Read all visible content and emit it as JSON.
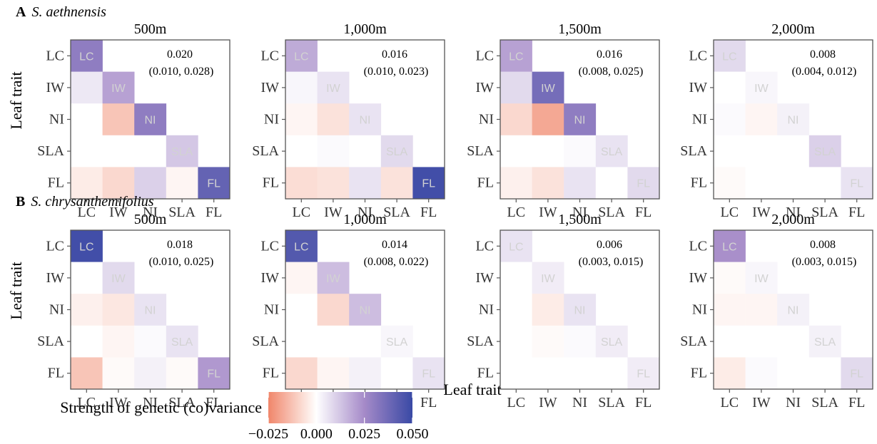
{
  "figure": {
    "shared_ylabel": "Leaf trait",
    "shared_xlabel": "Leaf trait",
    "colorbar": {
      "title": "Strength of genetic (co)variance",
      "min": -0.025,
      "max": 0.05,
      "ticks": [
        -0.025,
        0.0,
        0.025,
        0.05
      ],
      "tick_labels": [
        "−0.025",
        "0.000",
        "0.025",
        "0.050"
      ],
      "colors": {
        "negative": "#f0866a",
        "zero": "#ffffff",
        "mid": "#a58ac8",
        "positive": "#3949a5"
      }
    }
  },
  "chart_data": {
    "type": "heatmap",
    "traits": [
      "LC",
      "IW",
      "NI",
      "SLA",
      "FL"
    ],
    "rows": [
      {
        "letter": "A",
        "species": "S. aethnensis",
        "panels": [
          {
            "title": "500m",
            "estimate": "0.020",
            "ci": "(0.010, 0.028)",
            "matrix": [
              [
                0.03,
                null,
                null,
                null,
                null
              ],
              [
                0.005,
                0.02,
                null,
                null,
                null
              ],
              [
                0.0,
                -0.012,
                0.03,
                null,
                null
              ],
              [
                0.0,
                0.0,
                0.0,
                0.012,
                null
              ],
              [
                -0.004,
                -0.008,
                0.01,
                -0.002,
                0.04
              ]
            ]
          },
          {
            "title": "1,000m",
            "estimate": "0.016",
            "ci": "(0.010, 0.023)",
            "matrix": [
              [
                0.018,
                null,
                null,
                null,
                null
              ],
              [
                0.002,
                0.006,
                null,
                null,
                null
              ],
              [
                -0.002,
                -0.006,
                0.006,
                null,
                null
              ],
              [
                0.0,
                0.001,
                0.0,
                0.008,
                null
              ],
              [
                -0.007,
                -0.006,
                0.006,
                -0.006,
                0.048
              ]
            ]
          },
          {
            "title": "1,500m",
            "estimate": "0.016",
            "ci": "(0.008, 0.025)",
            "matrix": [
              [
                0.02,
                null,
                null,
                null,
                null
              ],
              [
                0.008,
                0.036,
                null,
                null,
                null
              ],
              [
                -0.008,
                -0.018,
                0.03,
                null,
                null
              ],
              [
                0.0,
                0.0,
                0.001,
                0.006,
                null
              ],
              [
                -0.003,
                -0.006,
                0.006,
                0.0,
                0.008
              ]
            ]
          },
          {
            "title": "2,000m",
            "estimate": "0.008",
            "ci": "(0.004, 0.012)",
            "matrix": [
              [
                0.008,
                null,
                null,
                null,
                null
              ],
              [
                0.0,
                0.002,
                null,
                null,
                null
              ],
              [
                0.001,
                -0.002,
                0.003,
                null,
                null
              ],
              [
                0.0,
                0.0,
                0.0,
                0.01,
                null
              ],
              [
                -0.001,
                0.0,
                0.0,
                0.0,
                0.006
              ]
            ]
          }
        ]
      },
      {
        "letter": "B",
        "species": "S. chrysanthemifolius",
        "panels": [
          {
            "title": "500m",
            "estimate": "0.018",
            "ci": "(0.010, 0.025)",
            "matrix": [
              [
                0.048,
                null,
                null,
                null,
                null
              ],
              [
                0.0,
                0.008,
                null,
                null,
                null
              ],
              [
                -0.003,
                -0.005,
                0.006,
                null,
                null
              ],
              [
                0.0,
                -0.002,
                0.001,
                0.006,
                null
              ],
              [
                -0.012,
                -0.001,
                0.003,
                -0.001,
                0.022
              ]
            ]
          },
          {
            "title": "1,000m",
            "estimate": "0.014",
            "ci": "(0.008, 0.022)",
            "matrix": [
              [
                0.044,
                null,
                null,
                null,
                null
              ],
              [
                -0.002,
                0.014,
                null,
                null,
                null
              ],
              [
                0.0,
                -0.008,
                0.014,
                null,
                null
              ],
              [
                0.0,
                0.0,
                0.0,
                0.002,
                null
              ],
              [
                -0.008,
                -0.002,
                0.003,
                0.0,
                0.006
              ]
            ]
          },
          {
            "title": "1,500m",
            "estimate": "0.006",
            "ci": "(0.003, 0.015)",
            "matrix": [
              [
                0.006,
                null,
                null,
                null,
                null
              ],
              [
                0.0,
                0.004,
                null,
                null,
                null
              ],
              [
                0.0,
                -0.004,
                0.006,
                null,
                null
              ],
              [
                0.0,
                -0.001,
                0.001,
                0.004,
                null
              ],
              [
                0.0,
                0.0,
                0.0,
                0.0,
                0.004
              ]
            ]
          },
          {
            "title": "2,000m",
            "estimate": "0.008",
            "ci": "(0.003, 0.015)",
            "matrix": [
              [
                0.024,
                null,
                null,
                null,
                null
              ],
              [
                -0.001,
                0.002,
                null,
                null,
                null
              ],
              [
                -0.002,
                -0.002,
                0.003,
                null,
                null
              ],
              [
                0.0,
                0.0,
                0.0,
                0.003,
                null
              ],
              [
                -0.004,
                0.001,
                0.0,
                0.0,
                0.008
              ]
            ]
          }
        ]
      }
    ]
  }
}
